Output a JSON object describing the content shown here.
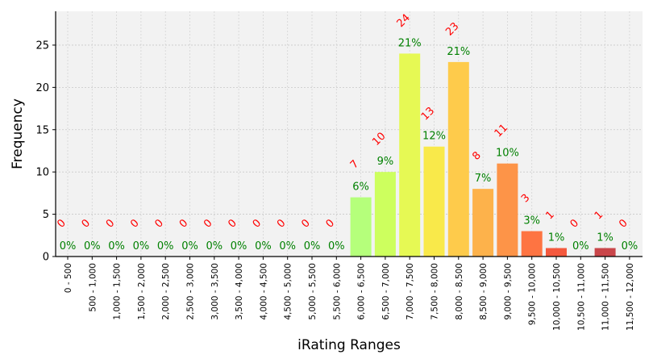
{
  "chart_data": {
    "type": "bar",
    "xlabel": "iRating Ranges",
    "ylabel": "Frequency",
    "ylim": [
      0,
      29
    ],
    "yticks": [
      0,
      5,
      10,
      15,
      20,
      25
    ],
    "grid": true,
    "categories": [
      "0 - 500",
      "500 - 1,000",
      "1,000 - 1,500",
      "1,500 - 2,000",
      "2,000 - 2,500",
      "2,500 - 3,000",
      "3,000 - 3,500",
      "3,500 - 4,000",
      "4,000 - 4,500",
      "4,500 - 5,000",
      "5,000 - 5,500",
      "5,500 - 6,000",
      "6,000 - 6,500",
      "6,500 - 7,000",
      "7,000 - 7,500",
      "7,500 - 8,000",
      "8,000 - 8,500",
      "8,500 - 9,000",
      "9,000 - 9,500",
      "9,500 - 10,000",
      "10,000 - 10,500",
      "10,500 - 11,000",
      "11,000 - 11,500",
      "11,500 - 12,000"
    ],
    "values": [
      0,
      0,
      0,
      0,
      0,
      0,
      0,
      0,
      0,
      0,
      0,
      0,
      7,
      10,
      24,
      13,
      23,
      8,
      11,
      3,
      1,
      0,
      1,
      0
    ],
    "percent_labels": [
      "0%",
      "0%",
      "0%",
      "0%",
      "0%",
      "0%",
      "0%",
      "0%",
      "0%",
      "0%",
      "0%",
      "0%",
      "6%",
      "9%",
      "21%",
      "12%",
      "21%",
      "7%",
      "10%",
      "3%",
      "1%",
      "0%",
      "1%",
      "0%"
    ],
    "colors": [
      "#b5ff7b",
      "#b5ff7b",
      "#b5ff7b",
      "#b5ff7b",
      "#b5ff7b",
      "#b5ff7b",
      "#b5ff7b",
      "#b5ff7b",
      "#b5ff7b",
      "#b5ff7b",
      "#b5ff7b",
      "#b5ff7b",
      "#b5ff7b",
      "#cdff5e",
      "#e6f954",
      "#f9e94a",
      "#fecb4b",
      "#fdb24b",
      "#fd9448",
      "#fe7442",
      "#f4583d",
      "#d8403c",
      "#c9464a",
      "#c9464a"
    ],
    "colors_legend": {
      "count_labels": "#ff0000",
      "percent_labels": "#008000",
      "plot_background": "#f2f2f2"
    }
  }
}
